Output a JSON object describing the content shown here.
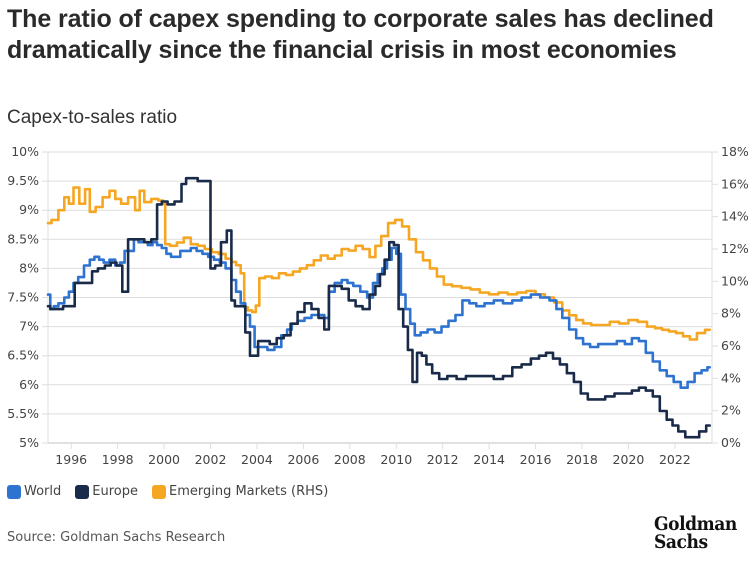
{
  "header": {
    "title": "The ratio of capex spending to corporate sales has declined dramatically since the financial crisis in most economies",
    "subtitle": "Capex-to-sales ratio"
  },
  "footer": {
    "source": "Source: Goldman Sachs Research",
    "logo_line1": "Goldman",
    "logo_line2": "Sachs"
  },
  "colors": {
    "world": "#2f73d1",
    "europe": "#1a2b4a",
    "em": "#f5a623",
    "grid": "#dedede"
  },
  "chart_data": {
    "type": "line",
    "title": "The ratio of capex spending to corporate sales has declined dramatically since the financial crisis in most economies",
    "subtitle": "Capex-to-sales ratio",
    "xlabel": "",
    "ylabel_left": "",
    "ylabel_right": "",
    "xlim": [
      1995,
      2023.6
    ],
    "ylim_left": [
      5,
      10
    ],
    "ylim_right": [
      0,
      18
    ],
    "x_ticks": [
      "1996",
      "1998",
      "2000",
      "2002",
      "2004",
      "2006",
      "2008",
      "2010",
      "2012",
      "2014",
      "2016",
      "2018",
      "2020",
      "2022"
    ],
    "x_tick_values": [
      1996,
      1998,
      2000,
      2002,
      2004,
      2006,
      2008,
      2010,
      2012,
      2014,
      2016,
      2018,
      2020,
      2022
    ],
    "y_ticks_left": [
      "5%",
      "5.5%",
      "6%",
      "6.5%",
      "7%",
      "7.5%",
      "8%",
      "8.5%",
      "9%",
      "9.5%",
      "10%"
    ],
    "y_tick_values_left": [
      5,
      5.5,
      6,
      6.5,
      7,
      7.5,
      8,
      8.5,
      9,
      9.5,
      10
    ],
    "y_ticks_right": [
      "0%",
      "2%",
      "4%",
      "6%",
      "8%",
      "10%",
      "12%",
      "14%",
      "16%",
      "18%"
    ],
    "y_tick_values_right": [
      0,
      2,
      4,
      6,
      8,
      10,
      12,
      14,
      16,
      18
    ],
    "grid": true,
    "legend_position": "bottom-left",
    "series": [
      {
        "name": "World",
        "axis": "left",
        "color": "#2f73d1",
        "x": [
          1995.0,
          1995.2,
          1995.3,
          1995.6,
          1995.8,
          1996.0,
          1996.2,
          1996.4,
          1996.7,
          1996.9,
          1997.1,
          1997.3,
          1997.5,
          1997.8,
          1998.0,
          1998.2,
          1998.4,
          1998.6,
          1998.8,
          1999.0,
          1999.2,
          1999.4,
          1999.6,
          1999.8,
          2000.0,
          2000.2,
          2000.4,
          2000.6,
          2000.8,
          2001.0,
          2001.3,
          2001.5,
          2001.8,
          2002.0,
          2002.3,
          2002.5,
          2002.8,
          2003.0,
          2003.2,
          2003.4,
          2003.6,
          2003.8,
          2004.0,
          2004.3,
          2004.6,
          2004.9,
          2005.2,
          2005.4,
          2005.6,
          2005.9,
          2006.2,
          2006.5,
          2006.8,
          2007.0,
          2007.2,
          2007.5,
          2007.8,
          2008.0,
          2008.3,
          2008.6,
          2008.9,
          2009.1,
          2009.3,
          2009.5,
          2009.7,
          2009.9,
          2010.1,
          2010.3,
          2010.5,
          2010.7,
          2010.9,
          2011.2,
          2011.5,
          2011.8,
          2012.1,
          2012.4,
          2012.7,
          2013.0,
          2013.3,
          2013.6,
          2014.0,
          2014.4,
          2014.8,
          2015.2,
          2015.6,
          2016.0,
          2016.4,
          2016.8,
          2017.0,
          2017.3,
          2017.6,
          2017.9,
          2018.2,
          2018.5,
          2018.9,
          2019.3,
          2019.7,
          2020.0,
          2020.3,
          2020.6,
          2020.9,
          2021.2,
          2021.5,
          2021.8,
          2022.1,
          2022.4,
          2022.7,
          2023.0,
          2023.3,
          2023.5
        ],
        "values": [
          7.55,
          7.3,
          7.35,
          7.4,
          7.5,
          7.6,
          7.75,
          7.85,
          8.05,
          8.15,
          8.2,
          8.15,
          8.1,
          8.15,
          8.05,
          8.1,
          8.3,
          8.3,
          8.5,
          8.45,
          8.45,
          8.4,
          8.45,
          8.4,
          8.35,
          8.25,
          8.2,
          8.2,
          8.3,
          8.3,
          8.35,
          8.3,
          8.25,
          8.2,
          8.15,
          8.1,
          8.0,
          7.8,
          7.6,
          7.4,
          7.2,
          7.0,
          6.65,
          6.65,
          6.6,
          6.65,
          6.85,
          6.95,
          7.05,
          7.1,
          7.15,
          7.2,
          7.2,
          7.15,
          7.6,
          7.75,
          7.8,
          7.75,
          7.7,
          7.6,
          7.5,
          7.75,
          7.9,
          8.0,
          8.15,
          8.35,
          8.25,
          7.55,
          7.3,
          7.05,
          6.85,
          6.9,
          6.95,
          6.9,
          7.0,
          7.1,
          7.2,
          7.45,
          7.4,
          7.35,
          7.4,
          7.45,
          7.4,
          7.45,
          7.5,
          7.55,
          7.5,
          7.45,
          7.3,
          7.15,
          6.95,
          6.8,
          6.7,
          6.65,
          6.7,
          6.7,
          6.75,
          6.7,
          6.8,
          6.75,
          6.55,
          6.4,
          6.25,
          6.15,
          6.05,
          5.95,
          6.05,
          6.2,
          6.25,
          6.3
        ]
      },
      {
        "name": "Europe",
        "axis": "left",
        "color": "#1a2b4a",
        "x": [
          1995.0,
          1995.2,
          1995.5,
          1995.8,
          1996.0,
          1996.3,
          1996.6,
          1996.8,
          1997.0,
          1997.3,
          1997.6,
          1997.8,
          1998.1,
          1998.3,
          1998.6,
          1998.8,
          1999.0,
          1999.3,
          1999.6,
          1999.8,
          2000.0,
          2000.3,
          2000.6,
          2000.9,
          2001.0,
          2001.3,
          2001.6,
          2001.9,
          2002.1,
          2002.3,
          2002.6,
          2002.8,
          2003.0,
          2003.1,
          2003.4,
          2003.6,
          2003.8,
          2004.0,
          2004.1,
          2004.4,
          2004.7,
          2005.0,
          2005.3,
          2005.6,
          2005.9,
          2006.2,
          2006.5,
          2006.8,
          2007.0,
          2007.2,
          2007.5,
          2007.8,
          2008.1,
          2008.4,
          2008.7,
          2009.0,
          2009.2,
          2009.4,
          2009.6,
          2009.8,
          2010.0,
          2010.2,
          2010.4,
          2010.6,
          2010.8,
          2011.0,
          2011.2,
          2011.4,
          2011.7,
          2012.0,
          2012.4,
          2012.8,
          2013.2,
          2013.6,
          2014.0,
          2014.4,
          2014.8,
          2015.2,
          2015.6,
          2016.0,
          2016.3,
          2016.6,
          2016.9,
          2017.2,
          2017.5,
          2017.8,
          2018.1,
          2018.4,
          2018.8,
          2019.2,
          2019.6,
          2020.0,
          2020.3,
          2020.6,
          2020.9,
          2021.2,
          2021.5,
          2021.8,
          2022.0,
          2022.3,
          2022.6,
          2022.9,
          2023.2,
          2023.5
        ],
        "values": [
          7.35,
          7.3,
          7.3,
          7.35,
          7.35,
          7.75,
          7.75,
          7.75,
          7.95,
          8.0,
          8.05,
          8.1,
          8.05,
          7.6,
          8.5,
          8.5,
          8.5,
          8.45,
          8.5,
          9.1,
          9.15,
          9.1,
          9.15,
          9.45,
          9.55,
          9.55,
          9.5,
          9.5,
          8.0,
          8.05,
          8.45,
          8.65,
          7.45,
          7.35,
          7.35,
          6.9,
          6.5,
          6.5,
          6.75,
          6.75,
          6.7,
          6.8,
          6.85,
          7.05,
          7.25,
          7.4,
          7.3,
          7.15,
          6.95,
          7.7,
          7.7,
          7.65,
          7.45,
          7.35,
          7.3,
          7.55,
          7.7,
          7.9,
          8.15,
          8.45,
          8.4,
          7.3,
          7.0,
          6.6,
          6.05,
          6.55,
          6.5,
          6.35,
          6.2,
          6.1,
          6.15,
          6.1,
          6.15,
          6.15,
          6.15,
          6.1,
          6.15,
          6.3,
          6.35,
          6.45,
          6.5,
          6.55,
          6.45,
          6.35,
          6.2,
          6.05,
          5.85,
          5.75,
          5.75,
          5.8,
          5.85,
          5.85,
          5.9,
          5.95,
          5.9,
          5.8,
          5.55,
          5.4,
          5.3,
          5.2,
          5.1,
          5.1,
          5.2,
          5.3
        ]
      },
      {
        "name": "Emerging Markets (RHS)",
        "axis": "right",
        "color": "#f5a623",
        "x": [
          1995.0,
          1995.3,
          1995.6,
          1995.8,
          1996.0,
          1996.2,
          1996.5,
          1996.7,
          1996.9,
          1997.2,
          1997.5,
          1997.8,
          1998.0,
          1998.3,
          1998.6,
          1998.9,
          1999.0,
          1999.3,
          1999.6,
          1999.9,
          2000.0,
          2000.1,
          2000.4,
          2000.7,
          2001.0,
          2001.3,
          2001.6,
          2001.9,
          2002.2,
          2002.5,
          2002.8,
          2003.0,
          2003.2,
          2003.4,
          2003.5,
          2003.7,
          2003.9,
          2004.0,
          2004.2,
          2004.5,
          2004.8,
          2005.1,
          2005.4,
          2005.7,
          2006.0,
          2006.3,
          2006.6,
          2006.9,
          2007.2,
          2007.5,
          2007.8,
          2008.1,
          2008.4,
          2008.7,
          2009.0,
          2009.2,
          2009.5,
          2009.8,
          2010.1,
          2010.4,
          2010.7,
          2011.0,
          2011.3,
          2011.6,
          2011.9,
          2012.2,
          2012.6,
          2013.0,
          2013.4,
          2013.8,
          2014.2,
          2014.6,
          2015.0,
          2015.4,
          2015.8,
          2016.2,
          2016.6,
          2017.0,
          2017.3,
          2017.6,
          2017.9,
          2018.2,
          2018.6,
          2019.0,
          2019.4,
          2019.8,
          2020.2,
          2020.6,
          2021.0,
          2021.3,
          2021.6,
          2021.9,
          2022.2,
          2022.5,
          2022.8,
          2023.1,
          2023.5
        ],
        "values": [
          13.6,
          13.8,
          14.4,
          15.2,
          14.8,
          15.8,
          14.8,
          15.7,
          14.3,
          14.6,
          15.2,
          15.6,
          15.1,
          14.8,
          15.2,
          14.4,
          15.6,
          14.9,
          15.1,
          15.0,
          14.8,
          12.3,
          12.2,
          12.4,
          12.7,
          12.3,
          12.2,
          12.0,
          11.8,
          11.7,
          11.4,
          11.2,
          11.0,
          10.5,
          8.4,
          8.2,
          8.1,
          8.5,
          10.2,
          10.3,
          10.2,
          10.5,
          10.4,
          10.6,
          10.8,
          11.0,
          11.3,
          11.6,
          11.4,
          11.6,
          12.0,
          11.9,
          12.2,
          12.0,
          11.5,
          12.2,
          12.8,
          13.6,
          13.8,
          13.4,
          12.6,
          11.8,
          11.3,
          10.8,
          10.3,
          9.8,
          9.7,
          9.6,
          9.5,
          9.3,
          9.2,
          9.3,
          9.2,
          9.3,
          9.4,
          9.2,
          9.0,
          8.7,
          8.2,
          7.9,
          7.6,
          7.4,
          7.3,
          7.3,
          7.5,
          7.4,
          7.6,
          7.5,
          7.2,
          7.1,
          7.0,
          6.9,
          6.8,
          6.6,
          6.4,
          6.8,
          7.0
        ]
      }
    ]
  },
  "legend": [
    {
      "label": "World",
      "color": "#2f73d1"
    },
    {
      "label": "Europe",
      "color": "#1a2b4a"
    },
    {
      "label": "Emerging Markets (RHS)",
      "color": "#f5a623"
    }
  ]
}
